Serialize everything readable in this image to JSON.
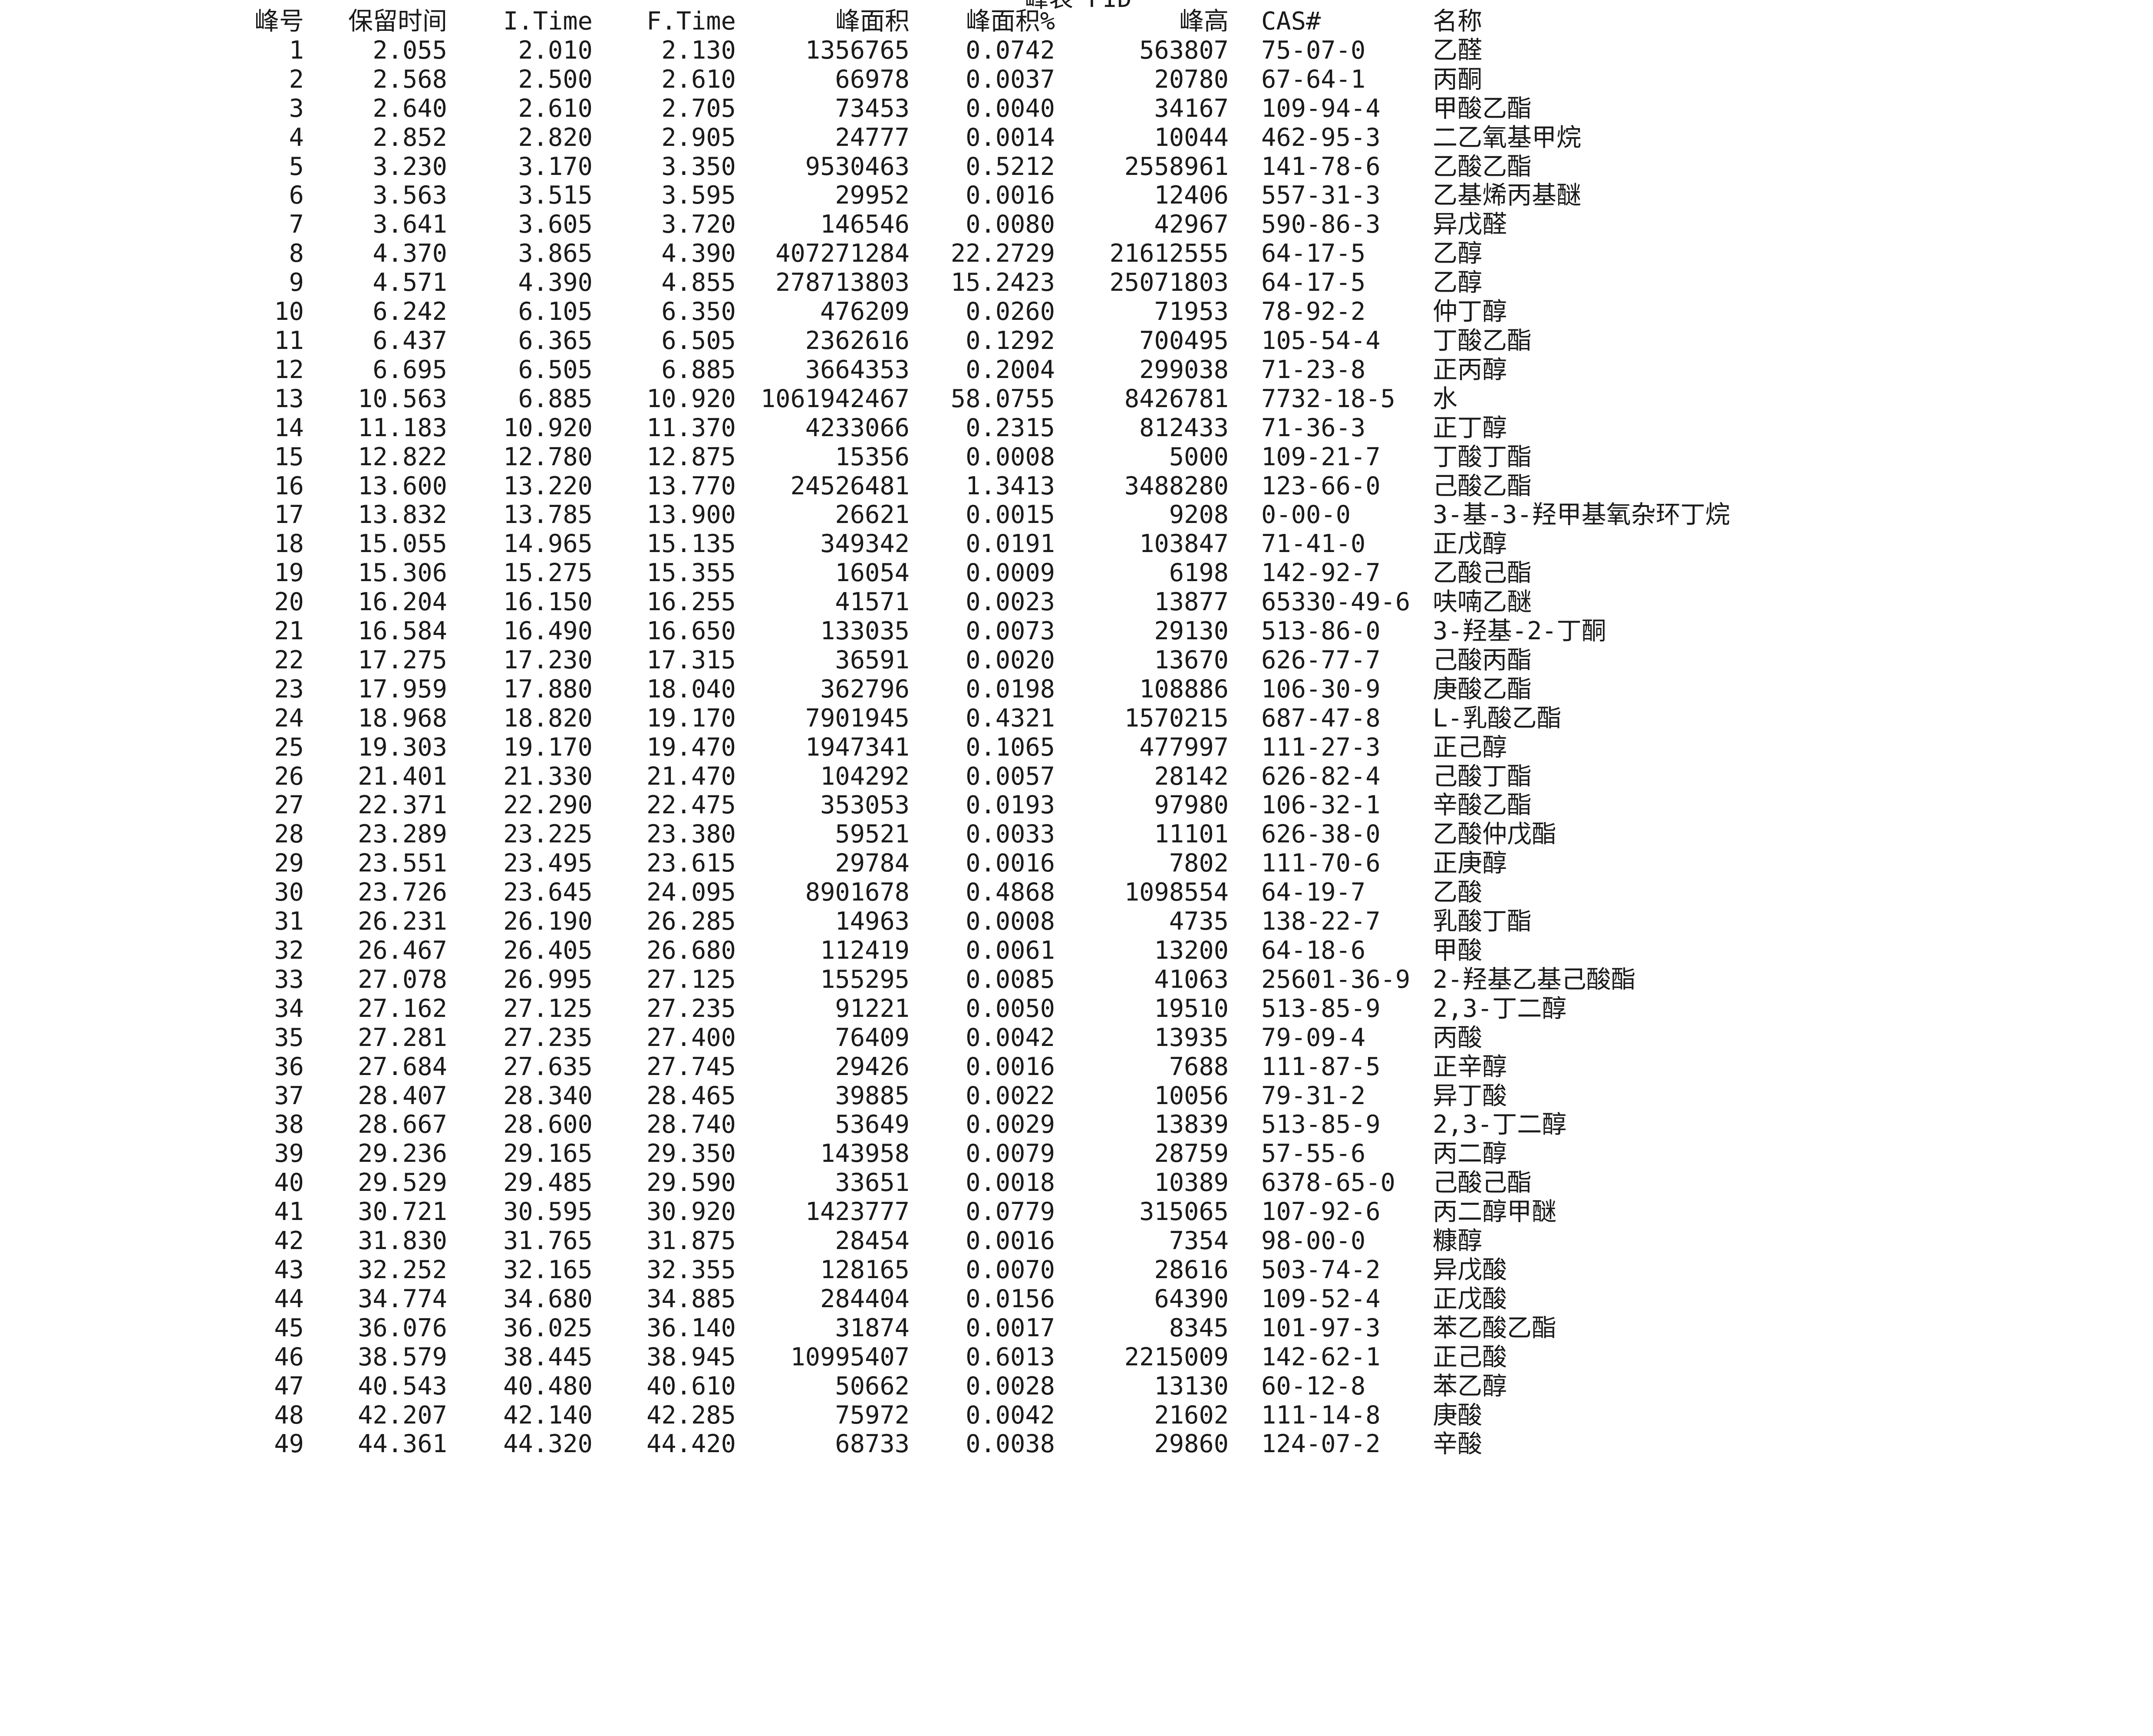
{
  "title": "峰表 FID",
  "columns": {
    "no": "峰号",
    "rt": "保留时间",
    "it": "I.Time",
    "ft": "F.Time",
    "area": "峰面积",
    "area_pct": "峰面积%",
    "height": "峰高",
    "cas": "CAS#",
    "name": "名称"
  },
  "rows": [
    [
      "1",
      "2.055",
      "2.010",
      "2.130",
      "1356765",
      "0.0742",
      "563807",
      "75-07-0",
      "乙醛"
    ],
    [
      "2",
      "2.568",
      "2.500",
      "2.610",
      "66978",
      "0.0037",
      "20780",
      "67-64-1",
      "丙酮"
    ],
    [
      "3",
      "2.640",
      "2.610",
      "2.705",
      "73453",
      "0.0040",
      "34167",
      "109-94-4",
      "甲酸乙酯"
    ],
    [
      "4",
      "2.852",
      "2.820",
      "2.905",
      "24777",
      "0.0014",
      "10044",
      "462-95-3",
      "二乙氧基甲烷"
    ],
    [
      "5",
      "3.230",
      "3.170",
      "3.350",
      "9530463",
      "0.5212",
      "2558961",
      "141-78-6",
      "乙酸乙酯"
    ],
    [
      "6",
      "3.563",
      "3.515",
      "3.595",
      "29952",
      "0.0016",
      "12406",
      "557-31-3",
      "乙基烯丙基醚"
    ],
    [
      "7",
      "3.641",
      "3.605",
      "3.720",
      "146546",
      "0.0080",
      "42967",
      "590-86-3",
      "异戊醛"
    ],
    [
      "8",
      "4.370",
      "3.865",
      "4.390",
      "407271284",
      "22.2729",
      "21612555",
      "64-17-5",
      "乙醇"
    ],
    [
      "9",
      "4.571",
      "4.390",
      "4.855",
      "278713803",
      "15.2423",
      "25071803",
      "64-17-5",
      "乙醇"
    ],
    [
      "10",
      "6.242",
      "6.105",
      "6.350",
      "476209",
      "0.0260",
      "71953",
      "78-92-2",
      "仲丁醇"
    ],
    [
      "11",
      "6.437",
      "6.365",
      "6.505",
      "2362616",
      "0.1292",
      "700495",
      "105-54-4",
      "丁酸乙酯"
    ],
    [
      "12",
      "6.695",
      "6.505",
      "6.885",
      "3664353",
      "0.2004",
      "299038",
      "71-23-8",
      "正丙醇"
    ],
    [
      "13",
      "10.563",
      "6.885",
      "10.920",
      "1061942467",
      "58.0755",
      "8426781",
      "7732-18-5",
      "水"
    ],
    [
      "14",
      "11.183",
      "10.920",
      "11.370",
      "4233066",
      "0.2315",
      "812433",
      "71-36-3",
      "正丁醇"
    ],
    [
      "15",
      "12.822",
      "12.780",
      "12.875",
      "15356",
      "0.0008",
      "5000",
      "109-21-7",
      "丁酸丁酯"
    ],
    [
      "16",
      "13.600",
      "13.220",
      "13.770",
      "24526481",
      "1.3413",
      "3488280",
      "123-66-0",
      "己酸乙酯"
    ],
    [
      "17",
      "13.832",
      "13.785",
      "13.900",
      "26621",
      "0.0015",
      "9208",
      "0-00-0",
      "3-基-3-羟甲基氧杂环丁烷"
    ],
    [
      "18",
      "15.055",
      "14.965",
      "15.135",
      "349342",
      "0.0191",
      "103847",
      "71-41-0",
      "正戊醇"
    ],
    [
      "19",
      "15.306",
      "15.275",
      "15.355",
      "16054",
      "0.0009",
      "6198",
      "142-92-7",
      "乙酸己酯"
    ],
    [
      "20",
      "16.204",
      "16.150",
      "16.255",
      "41571",
      "0.0023",
      "13877",
      "65330-49-6",
      "呋喃乙醚"
    ],
    [
      "21",
      "16.584",
      "16.490",
      "16.650",
      "133035",
      "0.0073",
      "29130",
      "513-86-0",
      "3-羟基-2-丁酮"
    ],
    [
      "22",
      "17.275",
      "17.230",
      "17.315",
      "36591",
      "0.0020",
      "13670",
      "626-77-7",
      "己酸丙酯"
    ],
    [
      "23",
      "17.959",
      "17.880",
      "18.040",
      "362796",
      "0.0198",
      "108886",
      "106-30-9",
      "庚酸乙酯"
    ],
    [
      "24",
      "18.968",
      "18.820",
      "19.170",
      "7901945",
      "0.4321",
      "1570215",
      "687-47-8",
      "L-乳酸乙酯"
    ],
    [
      "25",
      "19.303",
      "19.170",
      "19.470",
      "1947341",
      "0.1065",
      "477997",
      "111-27-3",
      "正己醇"
    ],
    [
      "26",
      "21.401",
      "21.330",
      "21.470",
      "104292",
      "0.0057",
      "28142",
      "626-82-4",
      "己酸丁酯"
    ],
    [
      "27",
      "22.371",
      "22.290",
      "22.475",
      "353053",
      "0.0193",
      "97980",
      "106-32-1",
      "辛酸乙酯"
    ],
    [
      "28",
      "23.289",
      "23.225",
      "23.380",
      "59521",
      "0.0033",
      "11101",
      "626-38-0",
      "乙酸仲戊酯"
    ],
    [
      "29",
      "23.551",
      "23.495",
      "23.615",
      "29784",
      "0.0016",
      "7802",
      "111-70-6",
      "正庚醇"
    ],
    [
      "30",
      "23.726",
      "23.645",
      "24.095",
      "8901678",
      "0.4868",
      "1098554",
      "64-19-7",
      "乙酸"
    ],
    [
      "31",
      "26.231",
      "26.190",
      "26.285",
      "14963",
      "0.0008",
      "4735",
      "138-22-7",
      "乳酸丁酯"
    ],
    [
      "32",
      "26.467",
      "26.405",
      "26.680",
      "112419",
      "0.0061",
      "13200",
      "64-18-6",
      "甲酸"
    ],
    [
      "33",
      "27.078",
      "26.995",
      "27.125",
      "155295",
      "0.0085",
      "41063",
      "25601-36-9",
      "2-羟基乙基己酸酯"
    ],
    [
      "34",
      "27.162",
      "27.125",
      "27.235",
      "91221",
      "0.0050",
      "19510",
      "513-85-9",
      "2,3-丁二醇"
    ],
    [
      "35",
      "27.281",
      "27.235",
      "27.400",
      "76409",
      "0.0042",
      "13935",
      "79-09-4",
      "丙酸"
    ],
    [
      "36",
      "27.684",
      "27.635",
      "27.745",
      "29426",
      "0.0016",
      "7688",
      "111-87-5",
      "正辛醇"
    ],
    [
      "37",
      "28.407",
      "28.340",
      "28.465",
      "39885",
      "0.0022",
      "10056",
      "79-31-2",
      "异丁酸"
    ],
    [
      "38",
      "28.667",
      "28.600",
      "28.740",
      "53649",
      "0.0029",
      "13839",
      "513-85-9",
      "2,3-丁二醇"
    ],
    [
      "39",
      "29.236",
      "29.165",
      "29.350",
      "143958",
      "0.0079",
      "28759",
      "57-55-6",
      "丙二醇"
    ],
    [
      "40",
      "29.529",
      "29.485",
      "29.590",
      "33651",
      "0.0018",
      "10389",
      "6378-65-0",
      "己酸己酯"
    ],
    [
      "41",
      "30.721",
      "30.595",
      "30.920",
      "1423777",
      "0.0779",
      "315065",
      "107-92-6",
      "丙二醇甲醚"
    ],
    [
      "42",
      "31.830",
      "31.765",
      "31.875",
      "28454",
      "0.0016",
      "7354",
      "98-00-0",
      "糠醇"
    ],
    [
      "43",
      "32.252",
      "32.165",
      "32.355",
      "128165",
      "0.0070",
      "28616",
      "503-74-2",
      "异戊酸"
    ],
    [
      "44",
      "34.774",
      "34.680",
      "34.885",
      "284404",
      "0.0156",
      "64390",
      "109-52-4",
      "正戊酸"
    ],
    [
      "45",
      "36.076",
      "36.025",
      "36.140",
      "31874",
      "0.0017",
      "8345",
      "101-97-3",
      "苯乙酸乙酯"
    ],
    [
      "46",
      "38.579",
      "38.445",
      "38.945",
      "10995407",
      "0.6013",
      "2215009",
      "142-62-1",
      "正己酸"
    ],
    [
      "47",
      "40.543",
      "40.480",
      "40.610",
      "50662",
      "0.0028",
      "13130",
      "60-12-8",
      "苯乙醇"
    ],
    [
      "48",
      "42.207",
      "42.140",
      "42.285",
      "75972",
      "0.0042",
      "21602",
      "111-14-8",
      "庚酸"
    ],
    [
      "49",
      "44.361",
      "44.320",
      "44.420",
      "68733",
      "0.0038",
      "29860",
      "124-07-2",
      "辛酸"
    ]
  ]
}
